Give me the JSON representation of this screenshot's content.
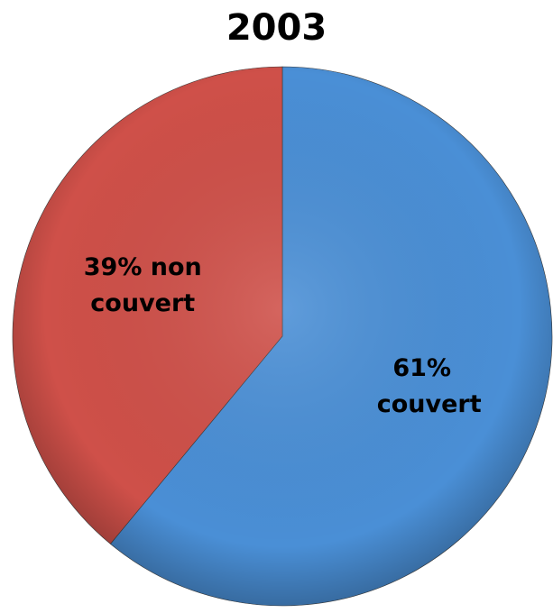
{
  "chart_data": {
    "type": "pie",
    "title": "2003",
    "values": [
      61,
      39
    ],
    "value_labels": [
      "61% couvert",
      "39% non couvert"
    ],
    "colors": [
      "#4a8fd6",
      "#cf5049"
    ]
  }
}
